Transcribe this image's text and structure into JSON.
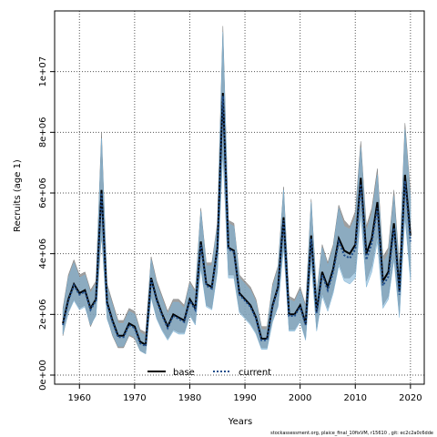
{
  "chart_data": {
    "type": "line",
    "xlabel": "Years",
    "ylabel": "Recruits (age 1)",
    "xlim": [
      1955.5,
      2022.5
    ],
    "ylim": [
      -300000,
      12000000
    ],
    "x_ticks": [
      1960,
      1970,
      1980,
      1990,
      2000,
      2010,
      2020
    ],
    "y_ticks": [
      0,
      2000000,
      4000000,
      6000000,
      8000000,
      10000000
    ],
    "y_tick_labels": [
      "0e+00",
      "2e+06",
      "4e+06",
      "6e+06",
      "8e+06",
      "1e+07"
    ],
    "grid": true,
    "legend_position": "bottom-center",
    "years": [
      1957,
      1958,
      1959,
      1960,
      1961,
      1962,
      1963,
      1964,
      1965,
      1966,
      1967,
      1968,
      1969,
      1970,
      1971,
      1972,
      1973,
      1974,
      1975,
      1976,
      1977,
      1978,
      1979,
      1980,
      1981,
      1982,
      1983,
      1984,
      1985,
      1986,
      1987,
      1988,
      1989,
      1990,
      1991,
      1992,
      1993,
      1994,
      1995,
      1996,
      1997,
      1998,
      1999,
      2000,
      2001,
      2002,
      2003,
      2004,
      2005,
      2006,
      2007,
      2008,
      2009,
      2010,
      2011,
      2012,
      2013,
      2014,
      2015,
      2016,
      2017,
      2018,
      2019,
      2020
    ],
    "series": [
      {
        "name": "base",
        "color": "#000000",
        "band_color": "#808080",
        "values": [
          1700000,
          2500000,
          3000000,
          2700000,
          2800000,
          2200000,
          2500000,
          6100000,
          2400000,
          1800000,
          1300000,
          1300000,
          1700000,
          1600000,
          1100000,
          1000000,
          3200000,
          2500000,
          2000000,
          1600000,
          2000000,
          1900000,
          1800000,
          2500000,
          2200000,
          4400000,
          3000000,
          2900000,
          4200000,
          9300000,
          4200000,
          4100000,
          2700000,
          2500000,
          2300000,
          1900000,
          1200000,
          1200000,
          2300000,
          2900000,
          5200000,
          2000000,
          2000000,
          2300000,
          1700000,
          4600000,
          2100000,
          3400000,
          2900000,
          3500000,
          4500000,
          4100000,
          4000000,
          4300000,
          6500000,
          4000000,
          4500000,
          5700000,
          3100000,
          3400000,
          5000000,
          2800000,
          6600000,
          4600000
        ],
        "lower": [
          1300000,
          2100000,
          2500000,
          2200000,
          2300000,
          1600000,
          2000000,
          4600000,
          1900000,
          1300000,
          900000,
          900000,
          1300000,
          1200000,
          800000,
          700000,
          2600000,
          1900000,
          1500000,
          1200000,
          1500000,
          1400000,
          1400000,
          2000000,
          1700000,
          3600000,
          2300000,
          2200000,
          3500000,
          7400000,
          3300000,
          3300000,
          2100000,
          1900000,
          1700000,
          1400000,
          900000,
          900000,
          1800000,
          2300000,
          4300000,
          1500000,
          1500000,
          1800000,
          1200000,
          3800000,
          1500000,
          2700000,
          2200000,
          2800000,
          3700000,
          3200000,
          3200000,
          3400000,
          5500000,
          3100000,
          3600000,
          4600000,
          2300000,
          2600000,
          3900000,
          2000000,
          5400000,
          3200000
        ],
        "upper": [
          2200000,
          3300000,
          3800000,
          3300000,
          3400000,
          2800000,
          3100000,
          8000000,
          3000000,
          2400000,
          1800000,
          1800000,
          2200000,
          2100000,
          1500000,
          1400000,
          3900000,
          3100000,
          2600000,
          2100000,
          2500000,
          2500000,
          2300000,
          3100000,
          2800000,
          5500000,
          3700000,
          3700000,
          5000000,
          11500000,
          5100000,
          5000000,
          3300000,
          3100000,
          2900000,
          2500000,
          1600000,
          1600000,
          3000000,
          3600000,
          6200000,
          2600000,
          2500000,
          2900000,
          2300000,
          5800000,
          2700000,
          4300000,
          3700000,
          4300000,
          5600000,
          5100000,
          4900000,
          5400000,
          7700000,
          4900000,
          5500000,
          6800000,
          3900000,
          4200000,
          6100000,
          3600000,
          8300000,
          6000000
        ]
      },
      {
        "name": "current",
        "color": "#1f4e8c",
        "band_color": "#7fb3d5",
        "values": [
          1650000,
          2450000,
          2950000,
          2650000,
          2750000,
          2150000,
          2450000,
          6000000,
          2350000,
          1750000,
          1250000,
          1250000,
          1650000,
          1550000,
          1050000,
          950000,
          3150000,
          2450000,
          1950000,
          1550000,
          1950000,
          1850000,
          1750000,
          2450000,
          2150000,
          4300000,
          2950000,
          2850000,
          4150000,
          9200000,
          4150000,
          4050000,
          2650000,
          2450000,
          2250000,
          1850000,
          1150000,
          1150000,
          2250000,
          2850000,
          5100000,
          1950000,
          1950000,
          2250000,
          1650000,
          4500000,
          2050000,
          3300000,
          2800000,
          3400000,
          4400000,
          3950000,
          3850000,
          4150000,
          6300000,
          3800000,
          4350000,
          5500000,
          2950000,
          3250000,
          4850000,
          2650000,
          6400000,
          4400000
        ],
        "lower": [
          1350000,
          2050000,
          2450000,
          2150000,
          2250000,
          1650000,
          1950000,
          4700000,
          1850000,
          1350000,
          950000,
          950000,
          1350000,
          1250000,
          800000,
          700000,
          2550000,
          1850000,
          1450000,
          1150000,
          1450000,
          1350000,
          1350000,
          1950000,
          1650000,
          3500000,
          2250000,
          2150000,
          3400000,
          7300000,
          3200000,
          3200000,
          2050000,
          1850000,
          1650000,
          1350000,
          850000,
          850000,
          1750000,
          2250000,
          4200000,
          1450000,
          1450000,
          1750000,
          1150000,
          3700000,
          1450000,
          2600000,
          2100000,
          2700000,
          3600000,
          3100000,
          3000000,
          3200000,
          5300000,
          2900000,
          3400000,
          4400000,
          2200000,
          2500000,
          3800000,
          1900000,
          5200000,
          3100000
        ],
        "upper": [
          2100000,
          3200000,
          3700000,
          3200000,
          3300000,
          2700000,
          3000000,
          7800000,
          2900000,
          2300000,
          1700000,
          1700000,
          2100000,
          2000000,
          1400000,
          1300000,
          3800000,
          3000000,
          2500000,
          2000000,
          2400000,
          2400000,
          2200000,
          3000000,
          2700000,
          5400000,
          3600000,
          3600000,
          4900000,
          11300000,
          5000000,
          4900000,
          3200000,
          3000000,
          2800000,
          2400000,
          1500000,
          1500000,
          2900000,
          3500000,
          6100000,
          2500000,
          2400000,
          2800000,
          2200000,
          5700000,
          2600000,
          4200000,
          3600000,
          4200000,
          5500000,
          4900000,
          4800000,
          5200000,
          7500000,
          4700000,
          5300000,
          6600000,
          3700000,
          4000000,
          5900000,
          3400000,
          8100000,
          5800000
        ]
      }
    ],
    "legend": [
      {
        "label": "base",
        "color": "#000000",
        "style": "solid"
      },
      {
        "label": "current",
        "color": "#1f4e8c",
        "style": "dotted"
      }
    ],
    "footer": "stockassessment.org, plaice_final_10fixVM, r15610 ,  git: ec2c2a0c6dde"
  }
}
